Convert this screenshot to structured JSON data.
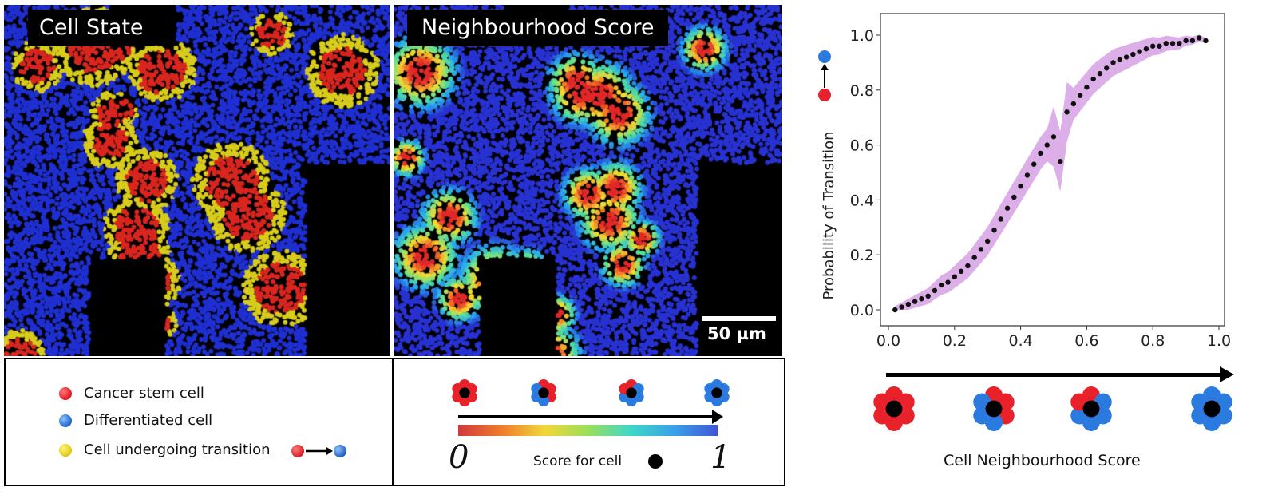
{
  "panels": {
    "left_title": "Cell State",
    "middle_title": "Neighbourhood Score",
    "scale_bar_label": "50 µm"
  },
  "legend": {
    "items": [
      {
        "label": "Cancer stem cell",
        "color": "#e8212b"
      },
      {
        "label": "Differentiated cell",
        "color": "#2a6fd6"
      },
      {
        "label": "Cell undergoing transition",
        "color": "#e6d21a"
      }
    ]
  },
  "score_legend": {
    "min_label": "0",
    "max_label": "1",
    "caption": "Score for cell"
  },
  "chart_data": {
    "type": "scatter",
    "xlabel": "Cell Neighbourhood Score",
    "ylabel": "Probability of Transition",
    "xlim": [
      0.0,
      1.0
    ],
    "ylim": [
      0.0,
      1.0
    ],
    "xticks": [
      "0.0",
      "0.2",
      "0.4",
      "0.6",
      "0.8",
      "1.0"
    ],
    "yticks": [
      "0.0",
      "0.2",
      "0.4",
      "0.6",
      "0.8",
      "1.0"
    ],
    "band_color": "#d8a6e6",
    "point_color": "#111111",
    "points": [
      [
        0.02,
        0.0
      ],
      [
        0.04,
        0.01
      ],
      [
        0.06,
        0.02
      ],
      [
        0.08,
        0.03
      ],
      [
        0.1,
        0.04
      ],
      [
        0.12,
        0.05
      ],
      [
        0.14,
        0.07
      ],
      [
        0.16,
        0.09
      ],
      [
        0.18,
        0.1
      ],
      [
        0.2,
        0.12
      ],
      [
        0.22,
        0.14
      ],
      [
        0.24,
        0.16
      ],
      [
        0.26,
        0.19
      ],
      [
        0.28,
        0.22
      ],
      [
        0.3,
        0.25
      ],
      [
        0.32,
        0.29
      ],
      [
        0.34,
        0.33
      ],
      [
        0.36,
        0.37
      ],
      [
        0.38,
        0.41
      ],
      [
        0.4,
        0.45
      ],
      [
        0.42,
        0.49
      ],
      [
        0.44,
        0.53
      ],
      [
        0.46,
        0.57
      ],
      [
        0.48,
        0.6
      ],
      [
        0.5,
        0.63
      ],
      [
        0.52,
        0.54
      ],
      [
        0.54,
        0.72
      ],
      [
        0.56,
        0.75
      ],
      [
        0.58,
        0.78
      ],
      [
        0.6,
        0.81
      ],
      [
        0.62,
        0.84
      ],
      [
        0.64,
        0.86
      ],
      [
        0.66,
        0.88
      ],
      [
        0.68,
        0.9
      ],
      [
        0.7,
        0.91
      ],
      [
        0.72,
        0.92
      ],
      [
        0.74,
        0.93
      ],
      [
        0.76,
        0.94
      ],
      [
        0.78,
        0.95
      ],
      [
        0.8,
        0.96
      ],
      [
        0.82,
        0.96
      ],
      [
        0.84,
        0.97
      ],
      [
        0.86,
        0.97
      ],
      [
        0.88,
        0.97
      ],
      [
        0.9,
        0.98
      ],
      [
        0.92,
        0.98
      ],
      [
        0.94,
        0.99
      ],
      [
        0.96,
        0.98
      ]
    ]
  }
}
